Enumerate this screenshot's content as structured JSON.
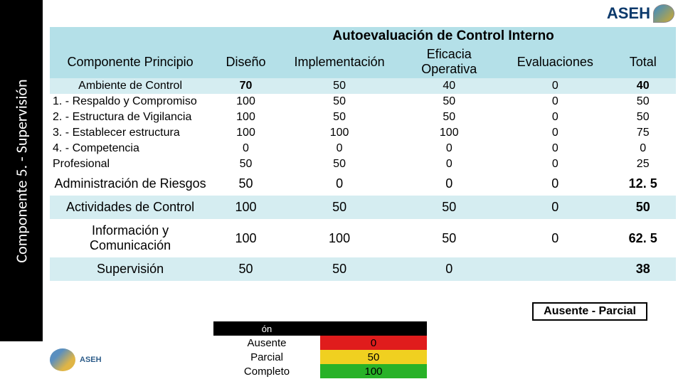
{
  "sidebar_label": "Componente 5. - Supervisión",
  "header_logo_text": "ASEH",
  "footer_logo_text": "ASEH",
  "table": {
    "title": "Autoevaluación de Control Interno",
    "columns": [
      "Componente Principio",
      "Diseño",
      "Implementación",
      "Eficacia Operativa",
      "Evaluaciones",
      "Total"
    ],
    "ambiente": {
      "label": "Ambiente de Control",
      "vals": [
        "70",
        "50",
        "40",
        "0",
        "40"
      ]
    },
    "princ1": {
      "label": "1. - Respaldo y Compromiso",
      "vals": [
        "100",
        "50",
        "50",
        "0",
        "50"
      ]
    },
    "princ2": {
      "label": "2. - Estructura de Vigilancia",
      "vals": [
        "100",
        "50",
        "50",
        "0",
        "50"
      ]
    },
    "princ3": {
      "label": "3. - Establecer estructura",
      "vals": [
        "100",
        "100",
        "100",
        "0",
        "75"
      ]
    },
    "princ4": {
      "label": "4. - Competencia",
      "vals": [
        "0",
        "0",
        "0",
        "0",
        "0"
      ]
    },
    "princ5": {
      "label": "Profesional",
      "vals": [
        "50",
        "50",
        "0",
        "0",
        "25"
      ]
    },
    "admin": {
      "label": "Administración de Riesgos",
      "vals": [
        "50",
        "0",
        "0",
        "0",
        "12. 5"
      ]
    },
    "activ": {
      "label": "Actividades de Control",
      "vals": [
        "100",
        "50",
        "50",
        "0",
        "50"
      ]
    },
    "info": {
      "label": "Información y Comunicación",
      "vals": [
        "100",
        "100",
        "50",
        "0",
        "62. 5"
      ]
    },
    "superv": {
      "label": "Supervisión",
      "vals": [
        "50",
        "50",
        "0",
        "",
        "38"
      ]
    },
    "colors": {
      "header_band": "#b4e0e8",
      "light_band": "#d5edf1"
    }
  },
  "status_badge": "Ausente - Parcial",
  "legend": {
    "on_fragment": "ón",
    "rows": [
      {
        "label": "Ausente",
        "bg": "#e01c1c",
        "val": "0"
      },
      {
        "label": "Parcial",
        "bg": "#f0d020",
        "val": "50"
      },
      {
        "label": "Completo",
        "bg": "#28b228",
        "val": "100"
      }
    ]
  }
}
